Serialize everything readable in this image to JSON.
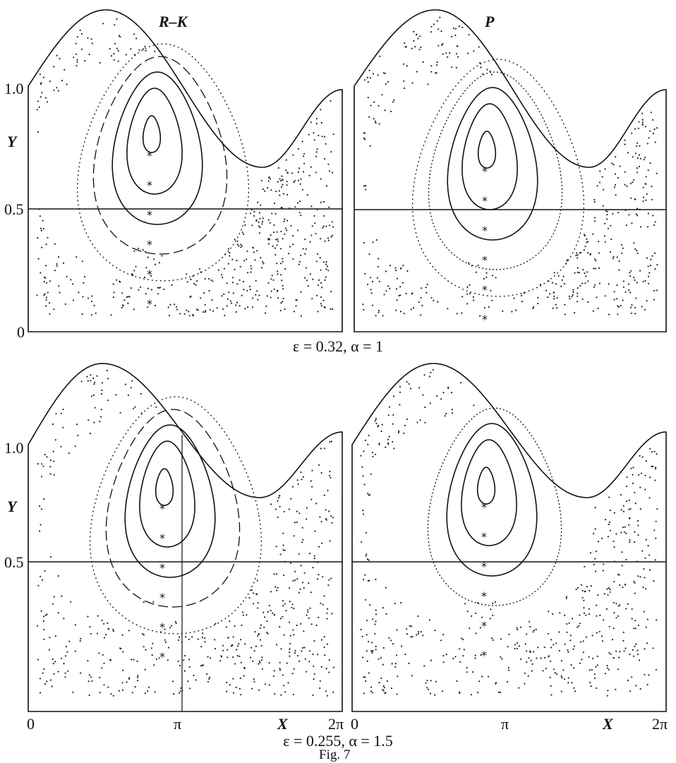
{
  "figure_label": "Fig. 7",
  "columns": [
    "R–K",
    "P"
  ],
  "rows": [
    {
      "caption": "ε = 0.32, α = 1"
    },
    {
      "caption": "ε = 0.255, α = 1.5"
    }
  ],
  "axes": {
    "y_name": "Y",
    "y_ticks": [
      "1.0",
      "0.5",
      "0"
    ],
    "x_name": "X",
    "x_ticks": [
      "0",
      "π",
      "2π"
    ]
  }
}
